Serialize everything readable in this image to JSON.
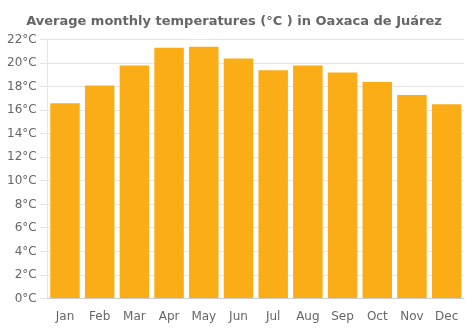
{
  "chart_data": {
    "type": "bar",
    "title": "Average monthly temperatures (°C ) in Oaxaca de Juárez",
    "categories": [
      "Jan",
      "Feb",
      "Mar",
      "Apr",
      "May",
      "Jun",
      "Jul",
      "Aug",
      "Sep",
      "Oct",
      "Nov",
      "Dec"
    ],
    "values": [
      16.6,
      18.1,
      19.8,
      21.3,
      21.4,
      20.4,
      19.4,
      19.8,
      19.2,
      18.4,
      17.3,
      16.5
    ],
    "color": "#FBAD18",
    "ylim": [
      0,
      22
    ],
    "yticks": [
      {
        "value": 0,
        "label": "0°C"
      },
      {
        "value": 2,
        "label": "2°C"
      },
      {
        "value": 4,
        "label": "4°C"
      },
      {
        "value": 6,
        "label": "6°C"
      },
      {
        "value": 8,
        "label": "8°C"
      },
      {
        "value": 10,
        "label": "10°C"
      },
      {
        "value": 12,
        "label": "12°C"
      },
      {
        "value": 14,
        "label": "14°C"
      },
      {
        "value": 16,
        "label": "16°C"
      },
      {
        "value": 18,
        "label": "18°C"
      },
      {
        "value": 20,
        "label": "20°C"
      },
      {
        "value": 22,
        "label": "22°C"
      }
    ],
    "grid": true
  }
}
